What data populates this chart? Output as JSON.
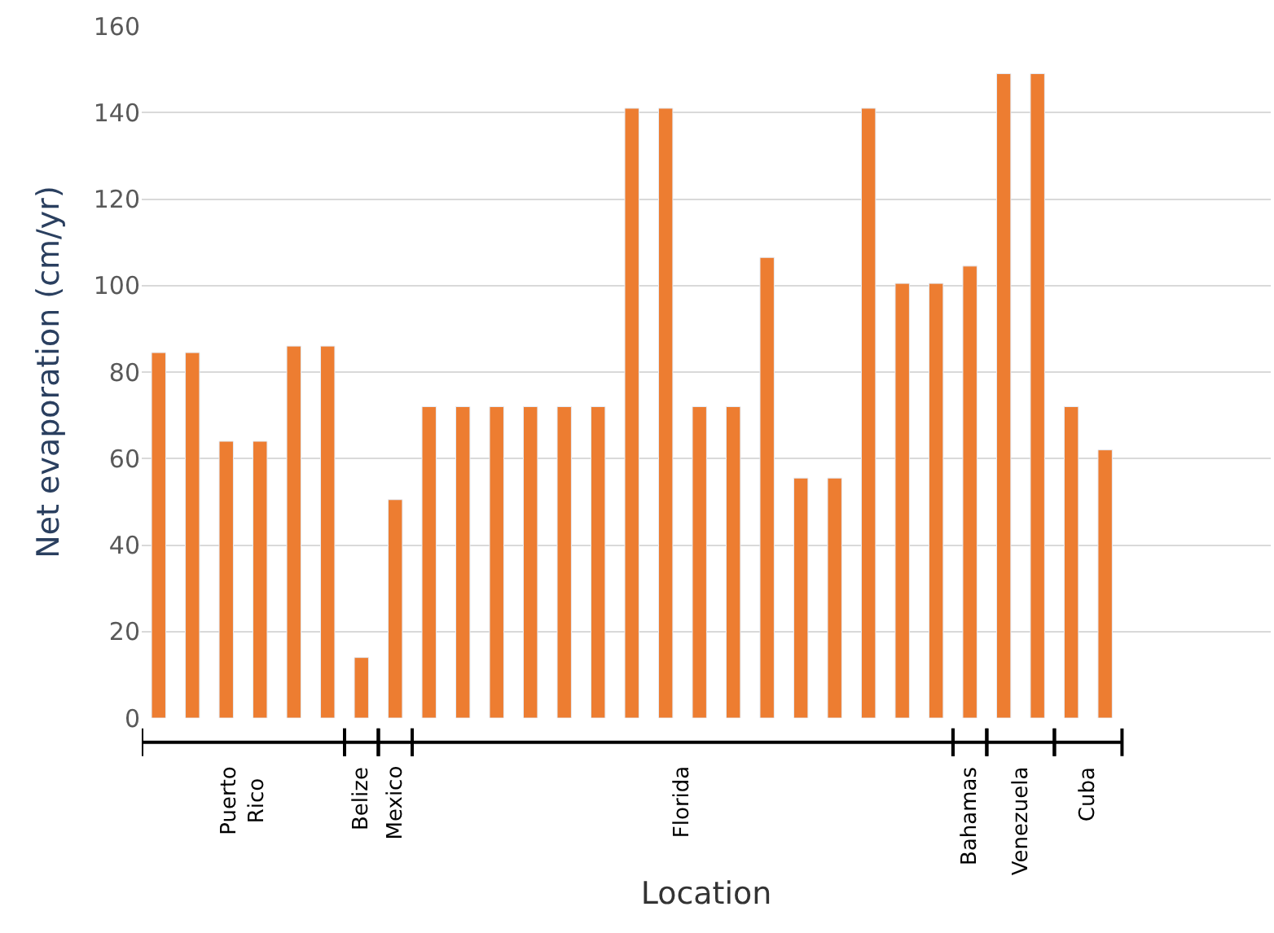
{
  "chart_data": {
    "type": "bar",
    "xlabel": "Location",
    "ylabel": "Net evaporation (cm/yr)",
    "categories": [
      null,
      null,
      null,
      null,
      null,
      null,
      null,
      null,
      null,
      null,
      null,
      null,
      null,
      null,
      null,
      null,
      null,
      null,
      null,
      null,
      null,
      null,
      null,
      null,
      null,
      null,
      null,
      null,
      null
    ],
    "values": [
      84.5,
      84.5,
      64,
      64,
      86,
      86,
      14,
      50.5,
      72,
      72,
      72,
      72,
      72,
      72,
      141,
      141,
      72,
      72,
      106.5,
      55.5,
      55.5,
      141,
      100.5,
      100.5,
      104.5,
      149,
      149,
      72,
      62
    ],
    "color": "#ed7d31",
    "ylim": [
      0,
      160
    ],
    "yticks": [
      0,
      20,
      40,
      60,
      80,
      100,
      120,
      140,
      160
    ],
    "grid": "y",
    "annotations": [
      "Puerto\nRico",
      "Belize",
      "Mexico",
      "Florida",
      "Bahamas",
      "Venezuela",
      "Cuba"
    ]
  }
}
